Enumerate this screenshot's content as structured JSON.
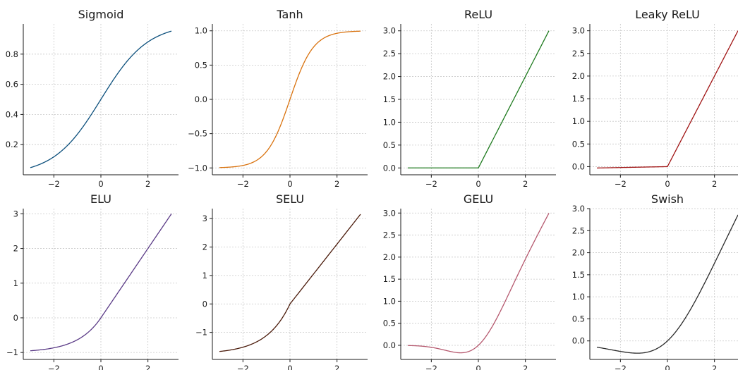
{
  "chart_data": [
    {
      "type": "line",
      "title": "Sigmoid",
      "function": "sigmoid",
      "color": "#0b4f7c",
      "x": [
        -3,
        -2.5,
        -2,
        -1.5,
        -1,
        -0.5,
        0,
        0.5,
        1,
        1.5,
        2,
        2.5,
        3
      ],
      "y": [
        0.047,
        0.076,
        0.119,
        0.182,
        0.269,
        0.378,
        0.5,
        0.622,
        0.731,
        0.818,
        0.881,
        0.924,
        0.953
      ],
      "xlim": [
        -3.3,
        3.3
      ],
      "ylim": [
        0.0,
        1.0
      ],
      "xticks": [
        -2,
        0,
        2
      ],
      "xtick_labels": [
        "−2",
        "0",
        "2"
      ],
      "yticks": [
        0.2,
        0.4,
        0.6,
        0.8
      ],
      "ytick_labels": [
        "0.2",
        "0.4",
        "0.6",
        "0.8"
      ],
      "grid": true
    },
    {
      "type": "line",
      "title": "Tanh",
      "function": "tanh",
      "color": "#d9720e",
      "x": [
        -3,
        -2.5,
        -2,
        -1.5,
        -1,
        -0.5,
        0,
        0.5,
        1,
        1.5,
        2,
        2.5,
        3
      ],
      "y": [
        -0.995,
        -0.987,
        -0.964,
        -0.905,
        -0.762,
        -0.462,
        0.0,
        0.462,
        0.762,
        0.905,
        0.964,
        0.987,
        0.995
      ],
      "xlim": [
        -3.3,
        3.3
      ],
      "ylim": [
        -1.1,
        1.1
      ],
      "xticks": [
        -2,
        0,
        2
      ],
      "xtick_labels": [
        "−2",
        "0",
        "2"
      ],
      "yticks": [
        -1.0,
        -0.5,
        0.0,
        0.5,
        1.0
      ],
      "ytick_labels": [
        "−1.0",
        "−0.5",
        "0.0",
        "0.5",
        "1.0"
      ],
      "grid": true
    },
    {
      "type": "line",
      "title": "ReLU",
      "function": "relu",
      "color": "#1e7a1e",
      "x": [
        -3,
        0,
        3
      ],
      "y": [
        0,
        0,
        3
      ],
      "xlim": [
        -3.3,
        3.3
      ],
      "ylim": [
        -0.15,
        3.15
      ],
      "xticks": [
        -2,
        0,
        2
      ],
      "xtick_labels": [
        "−2",
        "0",
        "2"
      ],
      "yticks": [
        0.0,
        0.5,
        1.0,
        1.5,
        2.0,
        2.5,
        3.0
      ],
      "ytick_labels": [
        "0.0",
        "0.5",
        "1.0",
        "1.5",
        "2.0",
        "2.5",
        "3.0"
      ],
      "grid": true
    },
    {
      "type": "line",
      "title": "Leaky ReLU",
      "function": "leaky_relu",
      "color": "#a01414",
      "x": [
        -3,
        0,
        3
      ],
      "y": [
        -0.03,
        0,
        3
      ],
      "xlim": [
        -3.3,
        3.3
      ],
      "ylim": [
        -0.18,
        3.15
      ],
      "xticks": [
        -2,
        0,
        2
      ],
      "xtick_labels": [
        "−2",
        "0",
        "2"
      ],
      "yticks": [
        0.0,
        0.5,
        1.0,
        1.5,
        2.0,
        2.5,
        3.0
      ],
      "ytick_labels": [
        "0.0",
        "0.5",
        "1.0",
        "1.5",
        "2.0",
        "2.5",
        "3.0"
      ],
      "grid": true
    },
    {
      "type": "line",
      "title": "ELU",
      "function": "elu",
      "color": "#5a3a86",
      "x": [
        -3,
        -2.5,
        -2,
        -1.5,
        -1,
        -0.5,
        0,
        1,
        2,
        3
      ],
      "y": [
        -0.95,
        -0.918,
        -0.865,
        -0.777,
        -0.632,
        -0.393,
        0,
        1,
        2,
        3
      ],
      "xlim": [
        -3.3,
        3.3
      ],
      "ylim": [
        -1.2,
        3.15
      ],
      "xticks": [
        -2,
        0,
        2
      ],
      "xtick_labels": [
        "−2",
        "0",
        "2"
      ],
      "yticks": [
        -1,
        0,
        1,
        2,
        3
      ],
      "ytick_labels": [
        "−1",
        "0",
        "1",
        "2",
        "3"
      ],
      "grid": true
    },
    {
      "type": "line",
      "title": "SELU",
      "function": "selu",
      "color": "#4a1a0a",
      "x": [
        -3,
        -2.5,
        -2,
        -1.5,
        -1,
        -0.5,
        0,
        1,
        2,
        3
      ],
      "y": [
        -1.67,
        -1.614,
        -1.52,
        -1.366,
        -1.111,
        -0.692,
        0,
        1.051,
        2.101,
        3.152
      ],
      "xlim": [
        -3.3,
        3.3
      ],
      "ylim": [
        -1.95,
        3.35
      ],
      "xticks": [
        -2,
        0,
        2
      ],
      "xtick_labels": [
        "−2",
        "0",
        "2"
      ],
      "yticks": [
        -1,
        0,
        1,
        2,
        3
      ],
      "ytick_labels": [
        "−1",
        "0",
        "1",
        "2",
        "3"
      ],
      "grid": true
    },
    {
      "type": "line",
      "title": "GELU",
      "function": "gelu",
      "color": "#b5586e",
      "x": [
        -3,
        -2.5,
        -2,
        -1.5,
        -1,
        -0.5,
        0,
        0.5,
        1,
        1.5,
        2,
        2.5,
        3
      ],
      "y": [
        -0.004,
        -0.015,
        -0.045,
        -0.1,
        -0.159,
        -0.154,
        0,
        0.346,
        0.841,
        1.4,
        1.955,
        2.485,
        2.996
      ],
      "xlim": [
        -3.3,
        3.3
      ],
      "ylim": [
        -0.32,
        3.1
      ],
      "xticks": [
        -2,
        0,
        2
      ],
      "xtick_labels": [
        "−2",
        "0",
        "2"
      ],
      "yticks": [
        0.0,
        0.5,
        1.0,
        1.5,
        2.0,
        2.5,
        3.0
      ],
      "ytick_labels": [
        "0.0",
        "0.5",
        "1.0",
        "1.5",
        "2.0",
        "2.5",
        "3.0"
      ],
      "grid": true
    },
    {
      "type": "line",
      "title": "Swish",
      "function": "swish",
      "color": "#2a2a2a",
      "x": [
        -3,
        -2.5,
        -2,
        -1.5,
        -1,
        -0.5,
        0,
        0.5,
        1,
        1.5,
        2,
        2.5,
        3
      ],
      "y": [
        -0.142,
        -0.189,
        -0.238,
        -0.273,
        -0.269,
        -0.189,
        0,
        0.311,
        0.731,
        1.227,
        1.762,
        2.311,
        2.858
      ],
      "xlim": [
        -3.3,
        3.3
      ],
      "ylim": [
        -0.42,
        3.0
      ],
      "xticks": [
        -2,
        0,
        2
      ],
      "xtick_labels": [
        "−2",
        "0",
        "2"
      ],
      "yticks": [
        0.0,
        0.5,
        1.0,
        1.5,
        2.0,
        2.5,
        3.0
      ],
      "ytick_labels": [
        "0.0",
        "0.5",
        "1.0",
        "1.5",
        "2.0",
        "2.5",
        "3.0"
      ],
      "grid": true
    }
  ]
}
